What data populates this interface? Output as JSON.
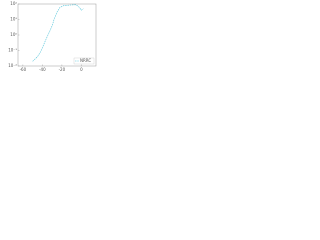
{
  "chart_data": {
    "type": "line",
    "x": [
      -50,
      -45,
      -42,
      -40,
      -38,
      -35,
      -32,
      -30,
      -28,
      -25,
      -22,
      -18,
      -12,
      -6,
      -3,
      0,
      2
    ],
    "series": [
      {
        "name": "NRRC",
        "color": "#4fc3d9",
        "values": [
          0.02,
          0.04,
          0.08,
          0.15,
          0.3,
          0.8,
          2,
          4,
          10,
          30,
          60,
          80,
          85,
          90,
          70,
          40,
          50
        ]
      }
    ],
    "xlim": [
      -65,
      15
    ],
    "xticks": [
      -60,
      -40,
      -20,
      0
    ],
    "ylim": [
      0.01,
      100
    ],
    "yticks": [
      {
        "value": 0.01,
        "label": "10⁻²"
      },
      {
        "value": 0.1,
        "label": "10⁻¹"
      },
      {
        "value": 1,
        "label": "10⁰"
      },
      {
        "value": 10,
        "label": "10¹"
      },
      {
        "value": 100,
        "label": "10²"
      }
    ],
    "log_y": true,
    "legend": "lower right"
  }
}
